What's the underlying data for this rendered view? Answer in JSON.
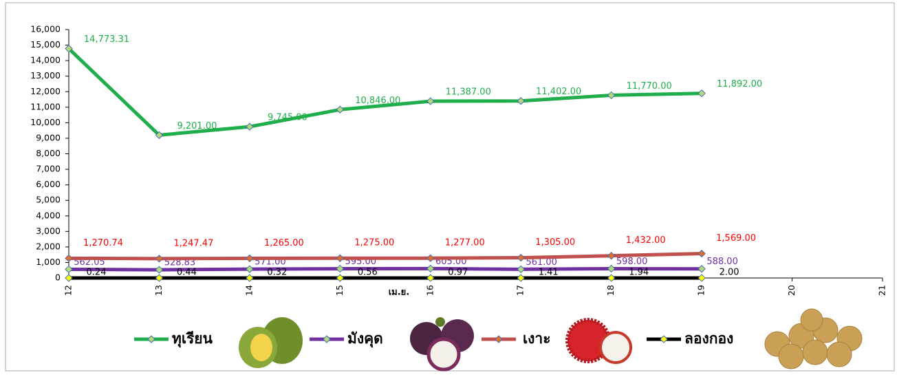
{
  "chart_data": {
    "type": "line",
    "x": [
      12,
      13,
      14,
      15,
      16,
      17,
      18,
      19
    ],
    "xlim": [
      12,
      21
    ],
    "xticks": [
      12,
      13,
      14,
      15,
      16,
      17,
      18,
      19,
      20,
      21
    ],
    "x_label": "เม.ย.",
    "ylim": [
      0,
      16000
    ],
    "yticks": [
      0,
      {
        "value": 1000,
        "label": "1,000"
      },
      {
        "value": 2000,
        "label": "2,000"
      },
      {
        "value": 3000,
        "label": "3,000"
      },
      {
        "value": 4000,
        "label": "4,000"
      },
      {
        "value": 5000,
        "label": "5,000"
      },
      {
        "value": 6000,
        "label": "6,000"
      },
      {
        "value": 7000,
        "label": "7,000"
      },
      {
        "value": 8000,
        "label": "8,000"
      },
      {
        "value": 9000,
        "label": "9,000"
      },
      {
        "value": 10000,
        "label": "10,000"
      },
      {
        "value": 11000,
        "label": "11,000"
      },
      {
        "value": 12000,
        "label": "12,000"
      },
      {
        "value": 13000,
        "label": "13,000"
      },
      {
        "value": 14000,
        "label": "14,000"
      },
      {
        "value": 15000,
        "label": "15,000"
      },
      {
        "value": 16000,
        "label": "16,000"
      }
    ],
    "legend": "bottom",
    "series": [
      {
        "name": "ทุเรียน",
        "color": "#1fae4b",
        "marker_color": "#b8d97a",
        "label_color": "#1fae4b",
        "values": [
          14773.31,
          9201,
          9745,
          10846,
          11387,
          11402,
          11770,
          11892
        ],
        "value_labels": [
          "14,773.31",
          "9,201.00",
          "9,745.00",
          "10,846.00",
          "11,387.00",
          "11,402.00",
          "11,770.00",
          "11,892.00"
        ]
      },
      {
        "name": "มังคุด",
        "color": "#7030a0",
        "marker_color": "#b8d97a",
        "label_color": "#7030a0",
        "values": [
          562.05,
          528.83,
          571,
          595,
          605,
          561,
          598,
          588
        ],
        "value_labels": [
          "562.05",
          "528.83",
          "571.00",
          "595.00",
          "605.00",
          "561.00",
          "598.00",
          "588.00"
        ]
      },
      {
        "name": "เงาะ",
        "color": "#c0504d",
        "marker_color": "#e46c2a",
        "label_color": "#ff0000",
        "values": [
          1270.74,
          1247.47,
          1265,
          1275,
          1277,
          1305,
          1432,
          1569
        ],
        "value_labels": [
          "1,270.74",
          "1,247.47",
          "1,265.00",
          "1,275.00",
          "1,277.00",
          "1,305.00",
          "1,432.00",
          "1,569.00"
        ]
      },
      {
        "name": "ลองกอง",
        "color": "#000000",
        "marker_color": "#ffff00",
        "label_color": "#000000",
        "values": [
          0.24,
          0.44,
          0.32,
          0.56,
          0.97,
          1.41,
          1.94,
          2.0
        ],
        "value_labels": [
          "0.24",
          "0.44",
          "0.32",
          "0.56",
          "0.97",
          "1.41",
          "1.94",
          "2.00"
        ]
      }
    ]
  }
}
